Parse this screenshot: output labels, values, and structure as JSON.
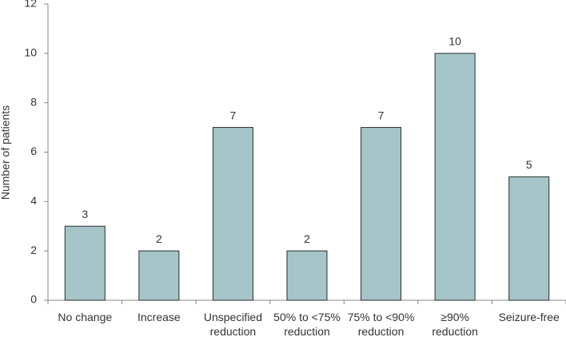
{
  "chart_data": {
    "type": "bar",
    "y_label": "Number of patients",
    "categories": [
      "No change",
      "Increase",
      "Unspecified reduction",
      "50% to <75% reduction",
      "75% to <90% reduction",
      "≥90% reduction",
      "Seizure-free"
    ],
    "values": [
      3,
      2,
      7,
      2,
      7,
      10,
      5
    ],
    "color": "#a5c5c9",
    "edge_color": "#2b2b2b",
    "ylim": [
      0,
      12
    ],
    "yticks": [
      0,
      2,
      4,
      6,
      8,
      10,
      12
    ],
    "grid": false,
    "data_labels": true
  }
}
